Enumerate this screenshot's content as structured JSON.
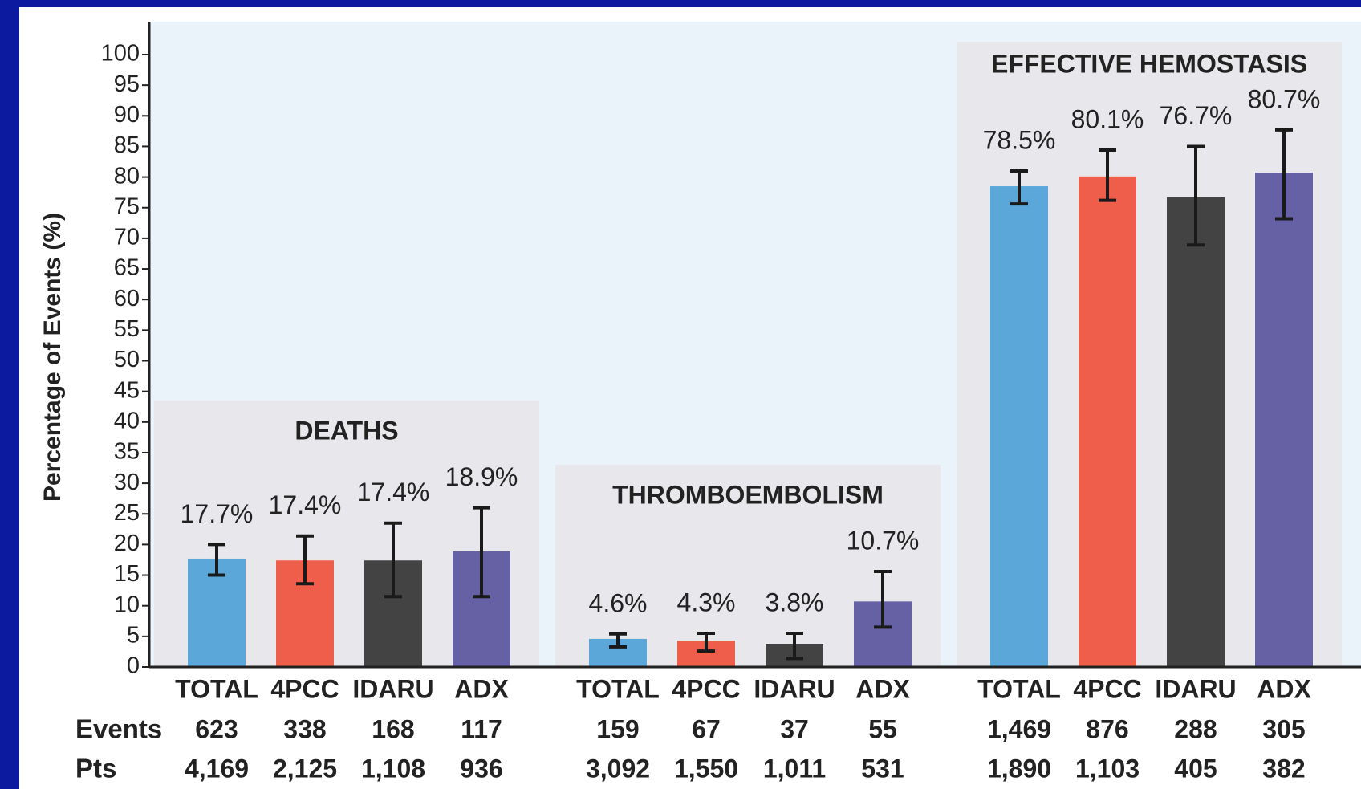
{
  "chart_data": {
    "type": "bar",
    "y_label": "Percentage of Events (%)",
    "ylim": [
      0,
      100
    ],
    "yticks": [
      0,
      5,
      10,
      15,
      20,
      25,
      30,
      35,
      40,
      45,
      50,
      55,
      60,
      65,
      70,
      75,
      80,
      85,
      90,
      95,
      100
    ],
    "colors": [
      "#5ba7d9",
      "#ef5d4b",
      "#434343",
      "#6660a5"
    ],
    "row_labels": [
      "Events",
      "Pts"
    ],
    "groups": [
      {
        "title": "DEATHS",
        "categories": [
          "TOTAL",
          "4PCC",
          "IDARU",
          "ADX"
        ],
        "values": [
          17.7,
          17.4,
          17.4,
          18.9
        ],
        "value_labels": [
          "17.7%",
          "17.4%",
          "17.4%",
          "18.9%"
        ],
        "ci_low": [
          15.0,
          13.6,
          11.5,
          11.5
        ],
        "ci_high": [
          20.0,
          21.4,
          23.5,
          26.0
        ],
        "events": [
          "623",
          "338",
          "168",
          "117"
        ],
        "pts": [
          "4,169",
          "2,125",
          "1,108",
          "936"
        ]
      },
      {
        "title": "THROMBOEMBOLISM",
        "categories": [
          "TOTAL",
          "4PCC",
          "IDARU",
          "ADX"
        ],
        "values": [
          4.6,
          4.3,
          3.8,
          10.7
        ],
        "value_labels": [
          "4.6%",
          "4.3%",
          "3.8%",
          "10.7%"
        ],
        "ci_low": [
          3.3,
          2.6,
          1.4,
          6.5
        ],
        "ci_high": [
          5.4,
          5.5,
          5.5,
          15.6
        ],
        "events": [
          "159",
          "67",
          "37",
          "55"
        ],
        "pts": [
          "3,092",
          "1,550",
          "1,011",
          "531"
        ]
      },
      {
        "title": "EFFECTIVE HEMOSTASIS",
        "categories": [
          "TOTAL",
          "4PCC",
          "IDARU",
          "ADX"
        ],
        "values": [
          78.5,
          80.1,
          76.7,
          80.7
        ],
        "value_labels": [
          "78.5%",
          "80.1%",
          "76.7%",
          "80.7%"
        ],
        "ci_low": [
          75.6,
          76.2,
          68.9,
          73.2
        ],
        "ci_high": [
          81.0,
          84.4,
          85.0,
          87.7
        ],
        "events": [
          "1,469",
          "876",
          "288",
          "305"
        ],
        "pts": [
          "1,890",
          "1,103",
          "405",
          "382"
        ]
      }
    ]
  }
}
